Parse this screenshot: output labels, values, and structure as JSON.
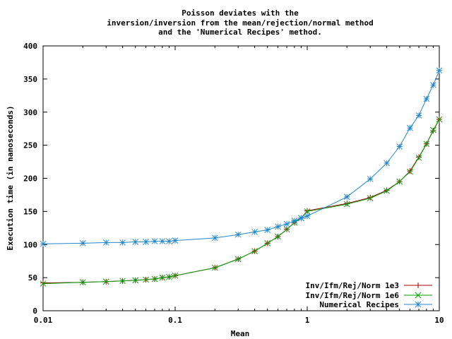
{
  "chart_data": {
    "type": "line",
    "title_lines": [
      "Poisson deviates with the",
      "inversion/inversion from the mean/rejection/normal method",
      "and the 'Numerical Recipes' method."
    ],
    "xlabel": "Mean",
    "ylabel": "Execution time (in nanoseconds)",
    "x_scale": "log",
    "xlim": [
      0.01,
      10
    ],
    "ylim": [
      0,
      400
    ],
    "x_ticks": [
      0.01,
      0.1,
      1,
      10
    ],
    "x_tick_labels": [
      "0.01",
      "0.1",
      "1",
      "10"
    ],
    "y_ticks": [
      0,
      50,
      100,
      150,
      200,
      250,
      300,
      350,
      400
    ],
    "y_tick_labels": [
      "0",
      "50",
      "100",
      "150",
      "200",
      "250",
      "300",
      "350",
      "400"
    ],
    "grid": false,
    "legend_position": "bottom-right",
    "series": [
      {
        "name": "Inv/Ifm/Rej/Norm 1e3",
        "color": "#a00000",
        "marker": "plus",
        "x": [
          0.01,
          0.02,
          0.03,
          0.04,
          0.05,
          0.06,
          0.07,
          0.08,
          0.09,
          0.1,
          0.2,
          0.3,
          0.4,
          0.5,
          0.6,
          0.7,
          0.8,
          0.9,
          1,
          2,
          3,
          4,
          5,
          6,
          7,
          8,
          9,
          10
        ],
        "y": [
          42,
          43,
          44,
          45,
          46,
          47,
          48,
          50,
          51,
          53,
          65,
          78,
          90,
          102,
          112,
          123,
          133,
          140,
          151,
          162,
          171,
          182,
          195,
          211,
          232,
          252,
          272,
          289
        ]
      },
      {
        "name": "Inv/Ifm/Rej/Norm 1e6",
        "color": "#00a000",
        "marker": "cross",
        "x": [
          0.01,
          0.02,
          0.03,
          0.04,
          0.05,
          0.06,
          0.07,
          0.08,
          0.09,
          0.1,
          0.2,
          0.3,
          0.4,
          0.5,
          0.6,
          0.7,
          0.8,
          0.9,
          1,
          2,
          3,
          4,
          5,
          6,
          7,
          8,
          9,
          10
        ],
        "y": [
          41,
          43,
          44,
          45,
          46,
          47,
          48,
          50,
          51,
          53,
          65,
          78,
          90,
          102,
          112,
          123,
          133,
          140,
          150,
          161,
          170,
          181,
          195,
          210,
          231,
          252,
          273,
          289
        ]
      },
      {
        "name": "Numerical Recipes",
        "color": "#2288cc",
        "marker": "star",
        "x": [
          0.01,
          0.02,
          0.03,
          0.04,
          0.05,
          0.06,
          0.07,
          0.08,
          0.09,
          0.1,
          0.2,
          0.3,
          0.4,
          0.5,
          0.6,
          0.7,
          0.8,
          0.9,
          1,
          2,
          3,
          4,
          5,
          6,
          7,
          8,
          9,
          10
        ],
        "y": [
          101,
          102,
          103,
          103,
          104,
          104,
          105,
          105,
          105,
          106,
          110,
          115,
          119,
          122,
          127,
          131,
          136,
          140,
          143,
          172,
          199,
          223,
          248,
          276,
          295,
          320,
          341,
          363
        ]
      }
    ]
  }
}
